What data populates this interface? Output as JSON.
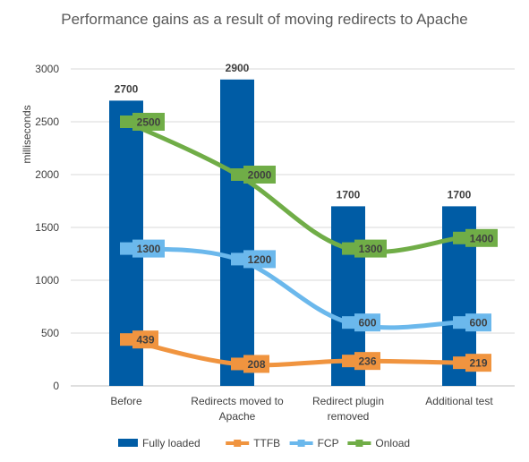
{
  "chart_data": {
    "type": "bar",
    "title": "Performance gains as a result of moving redirects to Apache",
    "xlabel": "",
    "ylabel": "milliseconds",
    "ylim": [
      0,
      3000
    ],
    "yticks": [
      0,
      500,
      1000,
      1500,
      2000,
      2500,
      3000
    ],
    "categories": [
      [
        "Before"
      ],
      [
        "Redirects moved to",
        "Apache"
      ],
      [
        "Redirect plugin",
        "removed"
      ],
      [
        "Additional test"
      ]
    ],
    "grid": true,
    "legend_position": "bottom",
    "series": [
      {
        "name": "Fully loaded",
        "kind": "bar",
        "color": "#005CA5",
        "values": [
          2700,
          2900,
          1700,
          1700
        ]
      },
      {
        "name": "TTFB",
        "kind": "line",
        "color": "#F0943F",
        "values": [
          439,
          208,
          236,
          219
        ]
      },
      {
        "name": "FCP",
        "kind": "line",
        "color": "#6BB8EC",
        "values": [
          1300,
          1200,
          600,
          600
        ]
      },
      {
        "name": "Onload",
        "kind": "line",
        "color": "#70AD47",
        "values": [
          2500,
          2000,
          1300,
          1400
        ]
      }
    ]
  }
}
